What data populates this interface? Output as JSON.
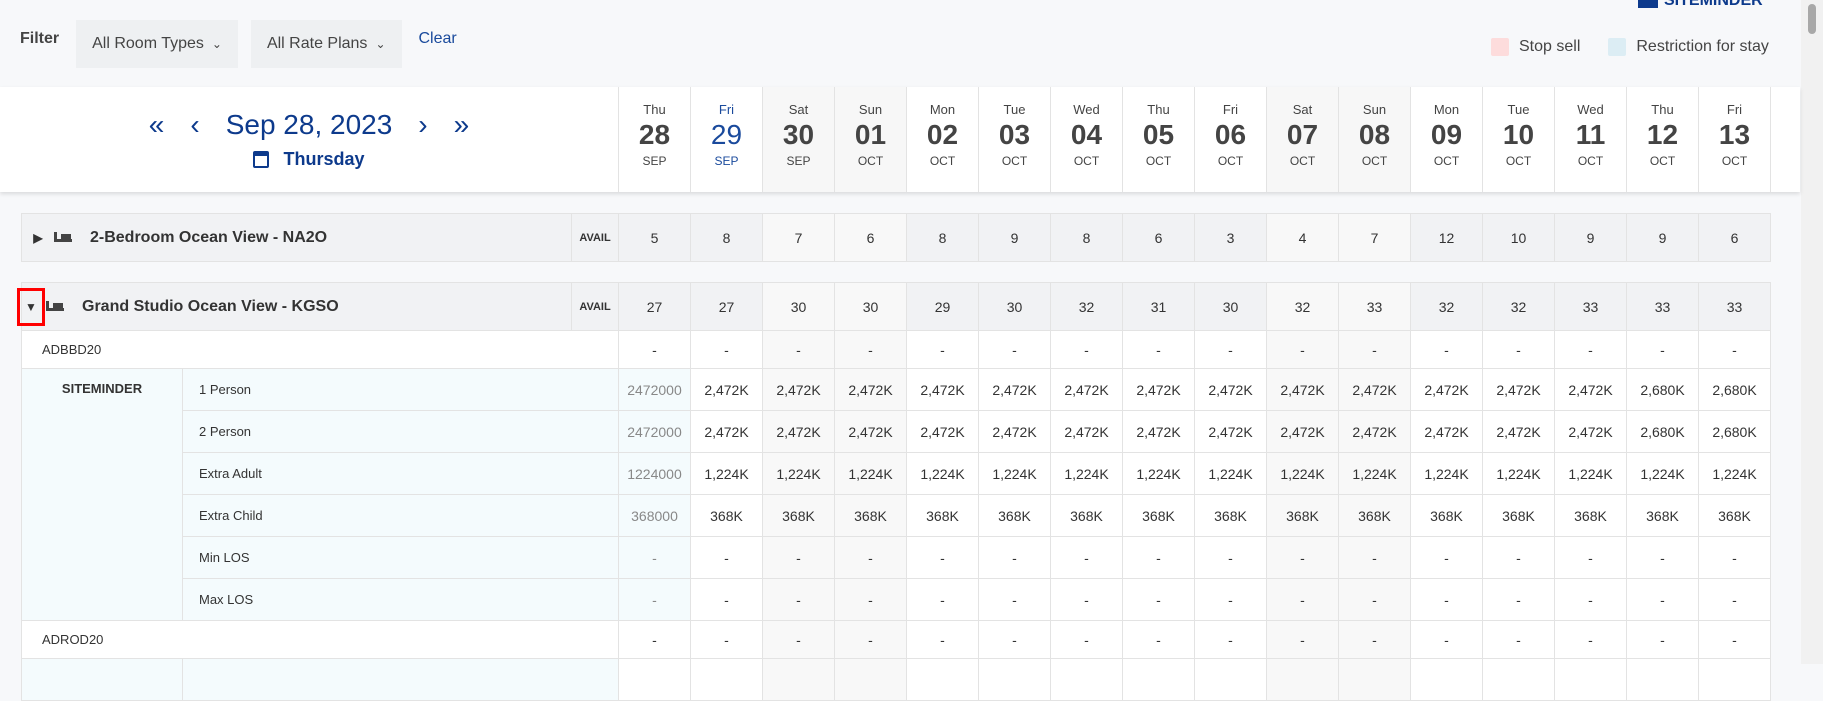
{
  "brand": "SITEMINDER",
  "filter": {
    "label": "Filter",
    "room_types": "All Room Types",
    "rate_plans": "All Rate Plans",
    "clear": "Clear"
  },
  "legend": {
    "stop_sell": "Stop sell",
    "restriction": "Restriction for stay",
    "stop_sell_color": "#fddcdc",
    "restriction_color": "#dcedf4"
  },
  "nav": {
    "first": "«",
    "prev": "‹",
    "date": "Sep 28, 2023",
    "next": "›",
    "last": "»",
    "weekday": "Thursday"
  },
  "dates": [
    {
      "dw": "Thu",
      "dn": "28",
      "mo": "SEP"
    },
    {
      "dw": "Fri",
      "dn": "29",
      "mo": "SEP",
      "selected": true
    },
    {
      "dw": "Sat",
      "dn": "30",
      "mo": "SEP",
      "weekend": true
    },
    {
      "dw": "Sun",
      "dn": "01",
      "mo": "OCT",
      "weekend": true
    },
    {
      "dw": "Mon",
      "dn": "02",
      "mo": "OCT"
    },
    {
      "dw": "Tue",
      "dn": "03",
      "mo": "OCT"
    },
    {
      "dw": "Wed",
      "dn": "04",
      "mo": "OCT"
    },
    {
      "dw": "Thu",
      "dn": "05",
      "mo": "OCT"
    },
    {
      "dw": "Fri",
      "dn": "06",
      "mo": "OCT"
    },
    {
      "dw": "Sat",
      "dn": "07",
      "mo": "OCT",
      "weekend": true
    },
    {
      "dw": "Sun",
      "dn": "08",
      "mo": "OCT",
      "weekend": true
    },
    {
      "dw": "Mon",
      "dn": "09",
      "mo": "OCT"
    },
    {
      "dw": "Tue",
      "dn": "10",
      "mo": "OCT"
    },
    {
      "dw": "Wed",
      "dn": "11",
      "mo": "OCT"
    },
    {
      "dw": "Thu",
      "dn": "12",
      "mo": "OCT"
    },
    {
      "dw": "Fri",
      "dn": "13",
      "mo": "OCT"
    }
  ],
  "rooms": [
    {
      "name": "2-Bedroom Ocean View - NA2O",
      "avail_label": "AVAIL",
      "expanded": false,
      "avail": [
        "5",
        "8",
        "7",
        "6",
        "8",
        "9",
        "8",
        "6",
        "3",
        "4",
        "7",
        "12",
        "10",
        "9",
        "9",
        "6"
      ]
    },
    {
      "name": "Grand Studio Ocean View - KGSO",
      "avail_label": "AVAIL",
      "expanded": true,
      "avail": [
        "27",
        "27",
        "30",
        "30",
        "29",
        "30",
        "32",
        "31",
        "30",
        "32",
        "33",
        "32",
        "32",
        "33",
        "33",
        "33"
      ]
    }
  ],
  "plans": [
    {
      "name": "ADBBD20",
      "values": [
        "-",
        "-",
        "-",
        "-",
        "-",
        "-",
        "-",
        "-",
        "-",
        "-",
        "-",
        "-",
        "-",
        "-",
        "-",
        "-"
      ],
      "channel": "SITEMINDER",
      "rates": [
        {
          "label": "1 Person",
          "values": [
            "2472000",
            "2,472K",
            "2,472K",
            "2,472K",
            "2,472K",
            "2,472K",
            "2,472K",
            "2,472K",
            "2,472K",
            "2,472K",
            "2,472K",
            "2,472K",
            "2,472K",
            "2,472K",
            "2,680K",
            "2,680K"
          ]
        },
        {
          "label": "2 Person",
          "values": [
            "2472000",
            "2,472K",
            "2,472K",
            "2,472K",
            "2,472K",
            "2,472K",
            "2,472K",
            "2,472K",
            "2,472K",
            "2,472K",
            "2,472K",
            "2,472K",
            "2,472K",
            "2,472K",
            "2,680K",
            "2,680K"
          ]
        },
        {
          "label": "Extra Adult",
          "values": [
            "1224000",
            "1,224K",
            "1,224K",
            "1,224K",
            "1,224K",
            "1,224K",
            "1,224K",
            "1,224K",
            "1,224K",
            "1,224K",
            "1,224K",
            "1,224K",
            "1,224K",
            "1,224K",
            "1,224K",
            "1,224K"
          ]
        },
        {
          "label": "Extra Child",
          "values": [
            "368000",
            "368K",
            "368K",
            "368K",
            "368K",
            "368K",
            "368K",
            "368K",
            "368K",
            "368K",
            "368K",
            "368K",
            "368K",
            "368K",
            "368K",
            "368K"
          ]
        },
        {
          "label": "Min LOS",
          "values": [
            "-",
            "-",
            "-",
            "-",
            "-",
            "-",
            "-",
            "-",
            "-",
            "-",
            "-",
            "-",
            "-",
            "-",
            "-",
            "-"
          ]
        },
        {
          "label": "Max LOS",
          "values": [
            "-",
            "-",
            "-",
            "-",
            "-",
            "-",
            "-",
            "-",
            "-",
            "-",
            "-",
            "-",
            "-",
            "-",
            "-",
            "-"
          ]
        }
      ]
    },
    {
      "name": "ADROD20",
      "values": [
        "-",
        "-",
        "-",
        "-",
        "-",
        "-",
        "-",
        "-",
        "-",
        "-",
        "-",
        "-",
        "-",
        "-",
        "-",
        "-"
      ]
    }
  ]
}
